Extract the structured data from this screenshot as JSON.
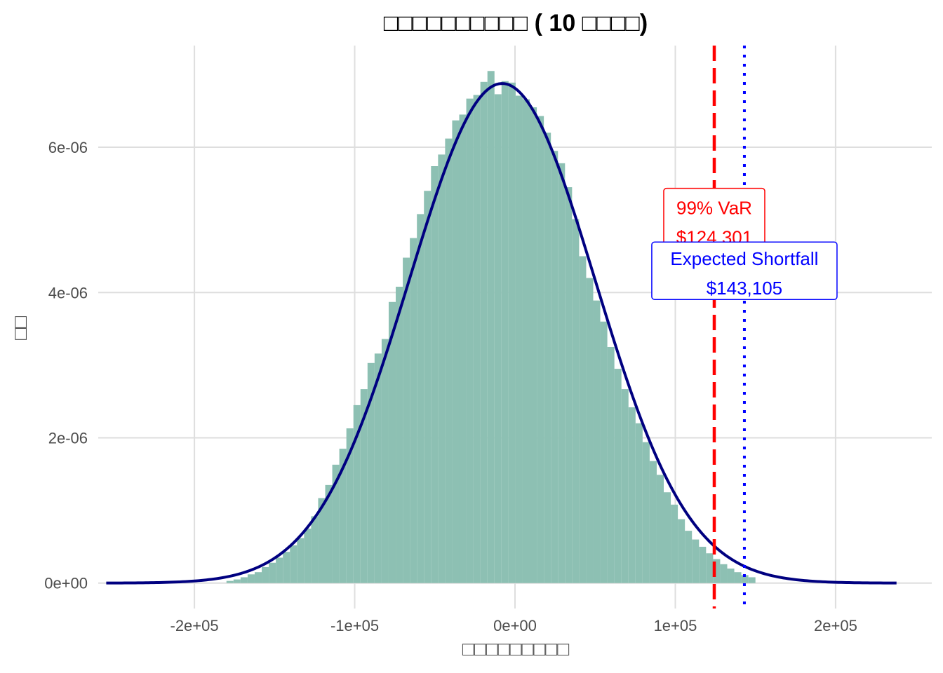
{
  "chart_data": {
    "type": "histogram",
    "title": "□□□□□□□□□□ ( 10 □□□□)",
    "xlabel": "□□□□□□□□□",
    "ylabel": "□□",
    "xlim": [
      -260000,
      260000
    ],
    "ylim": [
      -3.5e-07,
      7.4e-06
    ],
    "x_ticks": [
      -200000,
      -100000,
      0,
      100000,
      200000
    ],
    "x_tick_labels": [
      "-2e+05",
      "-1e+05",
      "0e+00",
      "1e+05",
      "2e+05"
    ],
    "y_ticks": [
      0,
      2e-06,
      4e-06,
      6e-06
    ],
    "y_tick_labels": [
      "0e+00",
      "2e-06",
      "4e-06",
      "6e-06"
    ],
    "grid": true,
    "histogram": {
      "bin_width": 4400,
      "bins": [
        [
          -180000,
          3e-08
        ],
        [
          -175600,
          5e-08
        ],
        [
          -171200,
          8e-08
        ],
        [
          -166800,
          1.2e-07
        ],
        [
          -162400,
          1.5e-07
        ],
        [
          -158000,
          2.2e-07
        ],
        [
          -153600,
          2.8e-07
        ],
        [
          -149200,
          3.5e-07
        ],
        [
          -144800,
          4.3e-07
        ],
        [
          -140400,
          5.2e-07
        ],
        [
          -136000,
          6.2e-07
        ],
        [
          -131600,
          7.5e-07
        ],
        [
          -127200,
          9.2e-07
        ],
        [
          -122800,
          1.17e-06
        ],
        [
          -118400,
          1.35e-06
        ],
        [
          -114000,
          1.63e-06
        ],
        [
          -109600,
          1.85e-06
        ],
        [
          -105200,
          2.13e-06
        ],
        [
          -100800,
          2.45e-06
        ],
        [
          -96400,
          2.67e-06
        ],
        [
          -92000,
          3.03e-06
        ],
        [
          -87600,
          3.16e-06
        ],
        [
          -83200,
          3.36e-06
        ],
        [
          -78800,
          3.87e-06
        ],
        [
          -74400,
          4.08e-06
        ],
        [
          -70000,
          4.48e-06
        ],
        [
          -65600,
          4.75e-06
        ],
        [
          -61200,
          5.08e-06
        ],
        [
          -56800,
          5.4e-06
        ],
        [
          -52400,
          5.74e-06
        ],
        [
          -48000,
          5.9e-06
        ],
        [
          -43600,
          6.12e-06
        ],
        [
          -39200,
          6.37e-06
        ],
        [
          -34800,
          6.45e-06
        ],
        [
          -30400,
          6.67e-06
        ],
        [
          -26000,
          6.72e-06
        ],
        [
          -21600,
          6.9e-06
        ],
        [
          -17200,
          7.05e-06
        ],
        [
          -12800,
          6.73e-06
        ],
        [
          -8400,
          6.91e-06
        ],
        [
          -4000,
          6.89e-06
        ],
        [
          400,
          6.71e-06
        ],
        [
          4800,
          6.66e-06
        ],
        [
          9200,
          6.55e-06
        ],
        [
          13600,
          6.43e-06
        ],
        [
          18000,
          6.2e-06
        ],
        [
          22400,
          5.95e-06
        ],
        [
          26800,
          5.78e-06
        ],
        [
          31200,
          5.45e-06
        ],
        [
          35600,
          5.01e-06
        ],
        [
          40000,
          4.5e-06
        ],
        [
          44400,
          4.2e-06
        ],
        [
          48800,
          3.89e-06
        ],
        [
          53200,
          3.6e-06
        ],
        [
          57600,
          3.25e-06
        ],
        [
          62000,
          2.95e-06
        ],
        [
          66400,
          2.67e-06
        ],
        [
          70800,
          2.42e-06
        ],
        [
          75200,
          2.2e-06
        ],
        [
          79600,
          1.94e-06
        ],
        [
          84000,
          1.68e-06
        ],
        [
          88400,
          1.49e-06
        ],
        [
          92800,
          1.25e-06
        ],
        [
          97200,
          1.08e-06
        ],
        [
          101600,
          8.8e-07
        ],
        [
          106000,
          7.2e-07
        ],
        [
          110400,
          6e-07
        ],
        [
          114800,
          5e-07
        ],
        [
          119200,
          4.1e-07
        ],
        [
          123600,
          3.3e-07
        ],
        [
          128000,
          2.6e-07
        ],
        [
          132400,
          2e-07
        ],
        [
          136800,
          1.5e-07
        ],
        [
          141200,
          1.1e-07
        ],
        [
          145600,
          8e-08
        ]
      ]
    },
    "density": {
      "name": "",
      "mean": -8000,
      "sd": 58000,
      "x_range": [
        -255000,
        238000
      ]
    },
    "annotations": {
      "var": {
        "label": "99% VaR",
        "value_text": "$124,301",
        "x": 124301,
        "label_y": 5e-06,
        "color": "#ff0000",
        "line_style": "dashed"
      },
      "es": {
        "label": "Expected Shortfall",
        "value_text": "$143,105",
        "x": 143105,
        "label_y": 4.3e-06,
        "color": "#0000ff",
        "line_style": "dotted"
      }
    },
    "colors": {
      "bars": "#8dc0b3",
      "density": "#000080",
      "grid": "#dedede"
    }
  }
}
